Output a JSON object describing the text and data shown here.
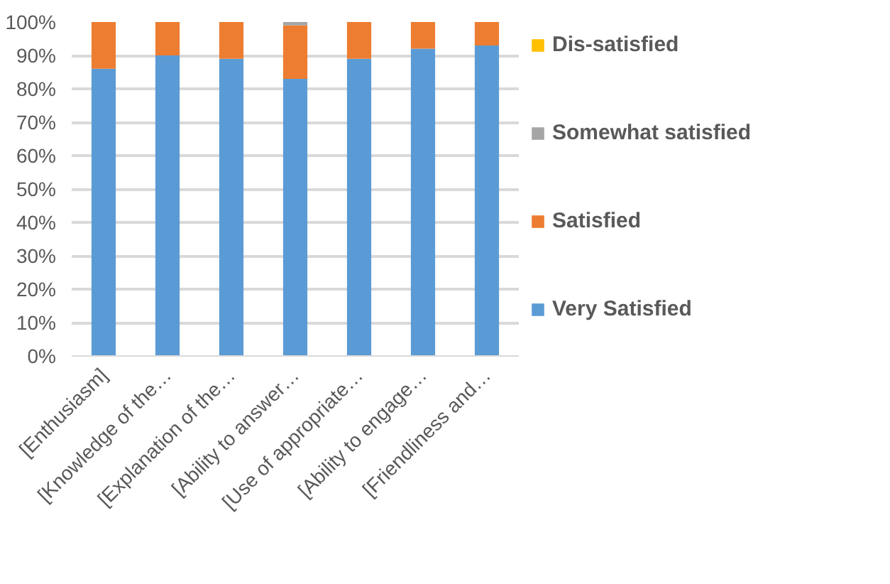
{
  "chart_data": {
    "type": "bar",
    "stacked": true,
    "categories": [
      "[Enthusiasm]",
      "[Knowledge of the…",
      "[Explanation of the…",
      "[Ability to answer…",
      "[Use of appropriate…",
      "[Ability to engage…",
      "[Friendliness and…"
    ],
    "series": [
      {
        "name": "Very Satisfied",
        "color": "#5b9bd5",
        "values": [
          86,
          90,
          89,
          83,
          89,
          92,
          93
        ]
      },
      {
        "name": "Satisfied",
        "color": "#ed7d31",
        "values": [
          14,
          10,
          11,
          16,
          11,
          8,
          7
        ]
      },
      {
        "name": "Somewhat satisfied",
        "color": "#a5a5a5",
        "values": [
          0,
          0,
          0,
          1,
          0,
          0,
          0
        ]
      },
      {
        "name": "Dis-satisfied",
        "color": "#ffc000",
        "values": [
          0,
          0,
          0,
          0,
          0,
          0,
          0
        ]
      }
    ],
    "ylim": [
      0,
      100
    ],
    "yticks": [
      {
        "value": 0,
        "label": "0%"
      },
      {
        "value": 10,
        "label": "10%"
      },
      {
        "value": 20,
        "label": "20%"
      },
      {
        "value": 30,
        "label": "30%"
      },
      {
        "value": 40,
        "label": "40%"
      },
      {
        "value": 50,
        "label": "50%"
      },
      {
        "value": 60,
        "label": "60%"
      },
      {
        "value": 70,
        "label": "70%"
      },
      {
        "value": 80,
        "label": "80%"
      },
      {
        "value": 90,
        "label": "90%"
      },
      {
        "value": 100,
        "label": "100%"
      }
    ],
    "grid": "y",
    "legend": "right"
  }
}
